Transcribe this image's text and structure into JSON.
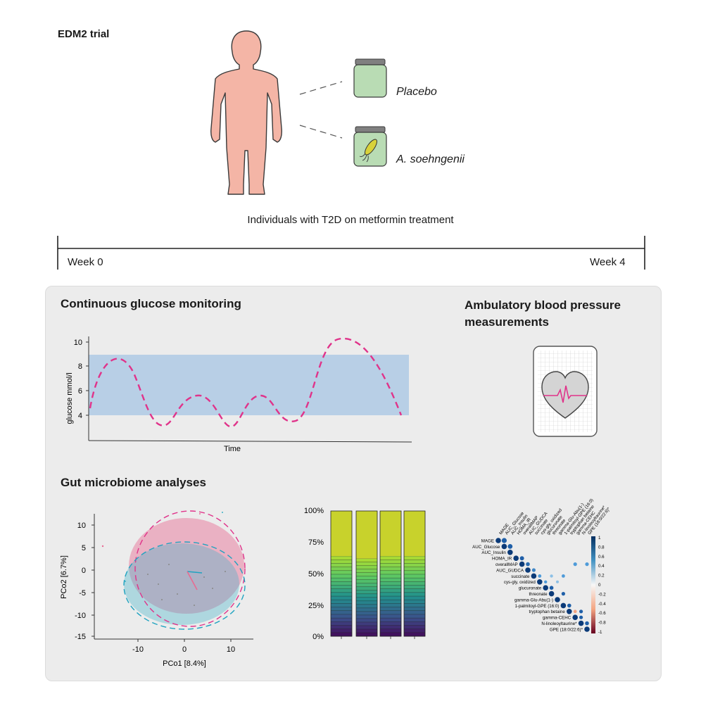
{
  "header": {
    "title": "EDM2 trial",
    "arm_placebo": "Placebo",
    "arm_treatment": "A. soehngenii",
    "caption": "Individuals with T2D on metformin treatment"
  },
  "timeline": {
    "start": "Week 0",
    "end": "Week 4"
  },
  "cgm": {
    "title": "Continuous glucose monitoring",
    "ylabel": "glucose mmol/l",
    "xlabel": "Time",
    "yticks": [
      "10",
      "8",
      "6",
      "4"
    ]
  },
  "abpm": {
    "title_line1": "Ambulatory blood pressure",
    "title_line2": "measurements"
  },
  "gut": {
    "title": "Gut microbiome analyses"
  },
  "pcoa": {
    "xlabel": "PCo1 [8.4%]",
    "ylabel": "PCo2 [6.7%]",
    "xticks": [
      "-10",
      "0",
      "10"
    ],
    "yticks": [
      "10",
      "5",
      "0",
      "-5",
      "-10",
      "-15"
    ]
  },
  "stacked_bar": {
    "yticks": [
      "100%",
      "75%",
      "50%",
      "25%",
      "0%"
    ]
  },
  "corrplot": {
    "row_labels": [
      "MAGE",
      "AUC_Glucose",
      "AUC_Insulin",
      "HOMA_IR",
      "overallMAP",
      "AUC_GUDCA",
      "succinate",
      "cys-gly, oxidized",
      "glucuronate",
      "threonate",
      "gamma-Glu-Abu(1-)",
      "1-palmitoyl-GPE (16:0)",
      "tryptophan betaine",
      "gamma-CEHC",
      "N-linoleoyltaurine*",
      "GPE (18:0/22:6)*"
    ],
    "col_labels": [
      "MAGE",
      "AUC_Glucose",
      "AUC_Insulin",
      "HOMA_IR",
      "overallMAP",
      "AUC_GUDCA",
      "succinate",
      "cys-gly, oxidized",
      "glucuronate",
      "threonate",
      "gamma-Glu-Abu(1-)",
      "1-palmitoyl-GPE (16:0)",
      "tryptophan betaine",
      "gamma-CEHC",
      "N-linoleoyltaurine*",
      "GPE (18:0/22:6)*"
    ],
    "scale_ticks": [
      "1",
      "0.8",
      "0.6",
      "0.4",
      "0.2",
      "0",
      "-0.2",
      "-0.4",
      "-0.6",
      "-0.8",
      "-1"
    ]
  },
  "colors": {
    "figure_skin": "#f4b5a6",
    "jar_body": "#b9dcb4",
    "jar_lid": "#808080",
    "cgm_band": "#b8cfe6",
    "cgm_curve": "#e0338a",
    "panel_bg": "#ececec",
    "pink_group": "#e86b92",
    "blue_group": "#3bb3c8"
  }
}
